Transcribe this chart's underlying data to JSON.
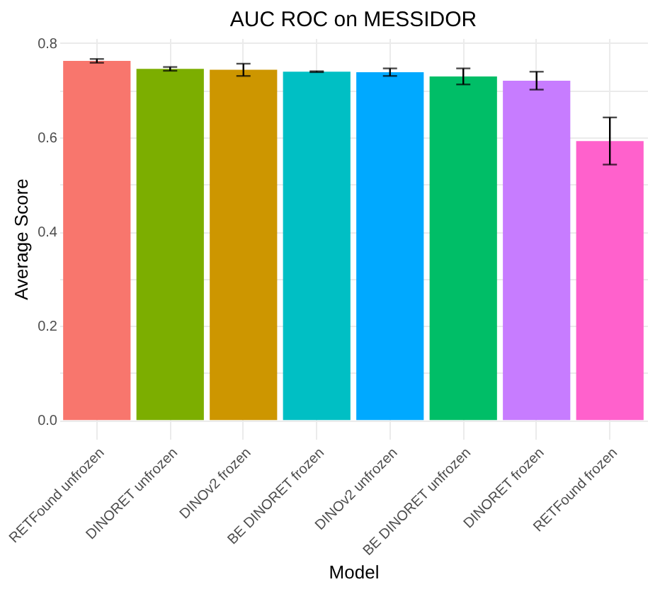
{
  "chart_data": {
    "type": "bar",
    "title": "AUC ROC on MESSIDOR",
    "xlabel": "Model",
    "ylabel": "Average Score",
    "categories": [
      "RETFound unfrozen",
      "DINORET unfrozen",
      "DINOv2 frozen",
      "BE DINORET frozen",
      "DINOv2 unfrozen",
      "BE DINORET unfrozen",
      "DINORET frozen",
      "RETFound frozen"
    ],
    "values": [
      0.762,
      0.745,
      0.743,
      0.739,
      0.738,
      0.729,
      0.72,
      0.592
    ],
    "errors": [
      0.004,
      0.004,
      0.013,
      0.001,
      0.008,
      0.017,
      0.019,
      0.05
    ],
    "colors": [
      "#f8766d",
      "#7cae00",
      "#cd9600",
      "#00bfc4",
      "#00a9ff",
      "#00be67",
      "#c77cff",
      "#ff61cc"
    ],
    "ylim": [
      -0.04,
      0.81
    ],
    "yticks": [
      {
        "value": 0,
        "label": "0.0"
      },
      {
        "value": 0.1,
        "label": null
      },
      0.2,
      {
        "value": 0.3,
        "label": null
      },
      0.4,
      {
        "value": 0.5,
        "label": null
      },
      0.6,
      {
        "value": 0.7,
        "label": null
      },
      0.8
    ],
    "grid": true,
    "legend": false
  }
}
